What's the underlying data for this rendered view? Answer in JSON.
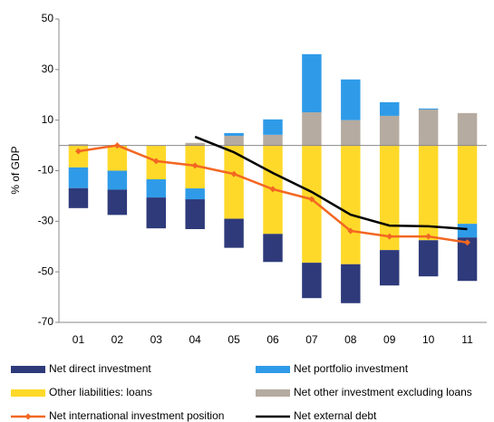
{
  "chart_data": {
    "type": "bar",
    "y_label": "% of GDP",
    "categories": [
      "01",
      "02",
      "03",
      "04",
      "05",
      "06",
      "07",
      "08",
      "09",
      "10",
      "11"
    ],
    "ylim": [
      -70,
      50
    ],
    "yticks": [
      -70,
      -50,
      -30,
      -10,
      10,
      30,
      50
    ],
    "series": [
      {
        "name": "Net direct investment",
        "color": "#2e3a7a",
        "values": [
          -7.9,
          -10,
          -12.2,
          -11.8,
          -11.5,
          -11.1,
          -14,
          -15.4,
          -14,
          -14.3,
          -17.2
        ]
      },
      {
        "name": "Net portfolio investment",
        "color": "#2f9be8",
        "values": [
          -8.2,
          -7.5,
          -7.2,
          -4.3,
          1.1,
          6.1,
          23,
          16.1,
          5.4,
          0.4,
          -5.4
        ]
      },
      {
        "name": "Other liabilities: loans",
        "color": "#ffd92a",
        "values": [
          -8.7,
          -10,
          -13.4,
          -17,
          -29,
          -35,
          -46.4,
          -47,
          -41.4,
          -37.5,
          -31
        ]
      },
      {
        "name": "Net other investment excluding loans",
        "color": "#b5aba0",
        "values": [
          0.5,
          0,
          0,
          1,
          3.8,
          4.2,
          13.1,
          10,
          11.7,
          14.2,
          12.8
        ]
      },
      {
        "name": "Net international investment position",
        "color": "#f26722",
        "type": "line",
        "values": [
          -2.3,
          0,
          -6.2,
          -8,
          -11.3,
          -17.3,
          -21.3,
          -33.8,
          -36,
          -36,
          -38.4
        ]
      },
      {
        "name": "Net external debt",
        "color": "#000000",
        "type": "line",
        "values": [
          null,
          null,
          null,
          3.4,
          -2.7,
          -10.9,
          -18.4,
          -27.4,
          -31.7,
          -32,
          -33.1
        ]
      }
    ]
  }
}
